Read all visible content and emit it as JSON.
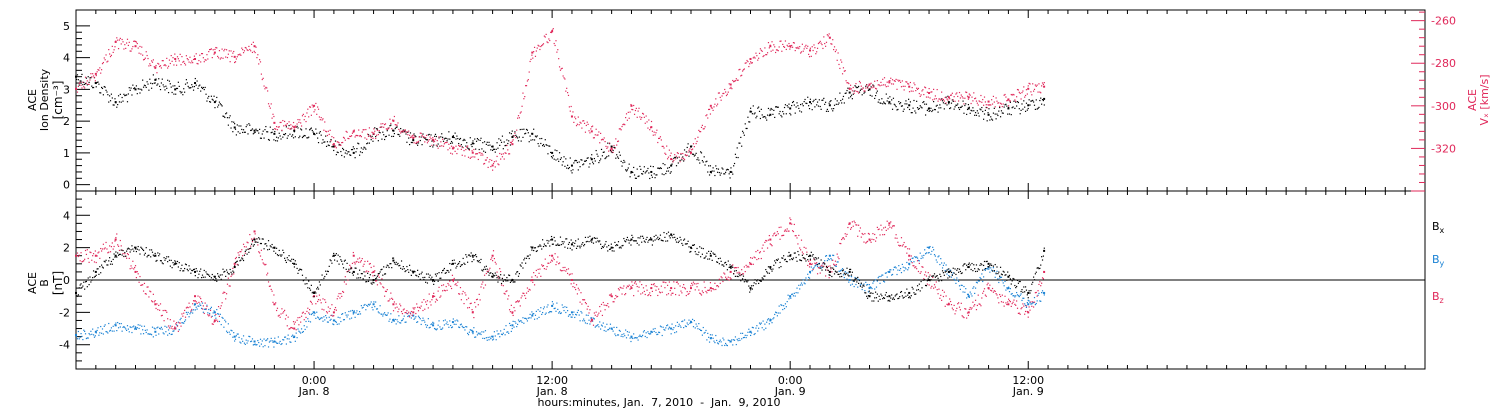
{
  "chart_data": {
    "type": "scatter",
    "x_axis": {
      "range_hours": [
        0,
        68
      ],
      "xlabel": "hours:minutes, Jan.  7, 2010  -  Jan.  9, 2010",
      "ticks": [
        {
          "hour": 12,
          "time": "0:00",
          "date": "Jan. 8"
        },
        {
          "hour": 24,
          "time": "12:00",
          "date": "Jan. 8"
        },
        {
          "hour": 36,
          "time": "0:00",
          "date": "Jan. 9"
        },
        {
          "hour": 48,
          "time": "12:00",
          "date": "Jan. 9"
        }
      ]
    },
    "panels": [
      {
        "name": "density-velocity",
        "left_axis": {
          "label_line1": "ACE",
          "label_line2": "Ion Density",
          "units": "[cm⁻³]",
          "ylim": [
            -0.2,
            5.5
          ],
          "ticks": [
            "0",
            "1",
            "2",
            "3",
            "4",
            "5"
          ],
          "color": "#000000"
        },
        "right_axis": {
          "label_line1": "ACE",
          "label_line2": "Vₓ [km/s]",
          "ylim": [
            -340,
            -255
          ],
          "ticks": [
            "-260",
            "-280",
            "-300",
            "-320"
          ],
          "color": "#e0285a"
        },
        "series": [
          {
            "id": "density",
            "color": "#000000",
            "axis": "left",
            "x": [
              0,
              1,
              2,
              3,
              4,
              5,
              6,
              7,
              8,
              9,
              10,
              11,
              12,
              13,
              14,
              15,
              16,
              17,
              18,
              19,
              20,
              21,
              22,
              23,
              24,
              25,
              26,
              27,
              28,
              29,
              30,
              31,
              32,
              33,
              34,
              35,
              36,
              37,
              38,
              39,
              40,
              41,
              42,
              43,
              44,
              45,
              46,
              47,
              48,
              48.8
            ],
            "y": [
              3.4,
              3.2,
              2.6,
              3.0,
              3.3,
              3.0,
              3.2,
              2.6,
              1.8,
              1.7,
              1.6,
              1.7,
              1.6,
              1.2,
              1.0,
              1.6,
              1.7,
              1.4,
              1.4,
              1.5,
              1.3,
              1.2,
              1.5,
              1.6,
              1.0,
              0.6,
              0.8,
              1.2,
              0.4,
              0.4,
              0.6,
              1.2,
              0.4,
              0.4,
              2.3,
              2.2,
              2.4,
              2.6,
              2.5,
              2.9,
              3.0,
              2.6,
              2.5,
              2.4,
              2.6,
              2.4,
              2.2,
              2.4,
              2.5,
              2.7
            ]
          },
          {
            "id": "vx",
            "color": "#e0285a",
            "axis": "right",
            "x": [
              0,
              1,
              2,
              3,
              4,
              5,
              6,
              7,
              8,
              9,
              10,
              11,
              12,
              13,
              14,
              15,
              16,
              17,
              18,
              19,
              20,
              21,
              22,
              23,
              24,
              25,
              26,
              27,
              28,
              29,
              30,
              31,
              32,
              33,
              34,
              35,
              36,
              37,
              38,
              39,
              40,
              41,
              42,
              43,
              44,
              45,
              46,
              47,
              48,
              48.8
            ],
            "y": [
              -292,
              -285,
              -270,
              -272,
              -282,
              -278,
              -278,
              -275,
              -277,
              -272,
              -308,
              -310,
              -300,
              -318,
              -312,
              -313,
              -307,
              -315,
              -316,
              -320,
              -322,
              -328,
              -318,
              -275,
              -265,
              -305,
              -312,
              -320,
              -300,
              -310,
              -325,
              -322,
              -300,
              -290,
              -278,
              -272,
              -272,
              -274,
              -268,
              -292,
              -290,
              -289,
              -291,
              -294,
              -296,
              -296,
              -298,
              -297,
              -292,
              -291
            ]
          }
        ]
      },
      {
        "name": "magnetic-field",
        "left_axis": {
          "label_line1": "ACE",
          "label_line2": "B",
          "units": "[nT]",
          "ylim": [
            -5.5,
            5.5
          ],
          "ticks": [
            "4",
            "2",
            "0",
            "-2",
            "-4"
          ]
        },
        "zero_line": true,
        "legend": [
          {
            "label": "B",
            "sub": "x",
            "color": "#000000"
          },
          {
            "label": "B",
            "sub": "y",
            "color": "#1a82d4"
          },
          {
            "label": "B",
            "sub": "z",
            "color": "#e0285a"
          }
        ],
        "series": [
          {
            "id": "bx",
            "color": "#000000",
            "x": [
              0,
              1,
              2,
              3,
              4,
              5,
              6,
              7,
              8,
              9,
              10,
              11,
              12,
              13,
              14,
              15,
              16,
              17,
              18,
              19,
              20,
              21,
              22,
              23,
              24,
              25,
              26,
              27,
              28,
              29,
              30,
              31,
              32,
              33,
              34,
              35,
              36,
              37,
              38,
              39,
              40,
              41,
              42,
              43,
              44,
              45,
              46,
              47,
              48,
              48.8
            ],
            "y": [
              -0.8,
              0.5,
              1.5,
              2.0,
              1.5,
              1.0,
              0.5,
              0.2,
              0.8,
              2.5,
              2.0,
              1.0,
              -0.8,
              1.5,
              0.5,
              0.0,
              1.2,
              0.5,
              0.0,
              1.0,
              1.5,
              0.2,
              0.0,
              2.0,
              2.5,
              2.2,
              2.5,
              2.0,
              2.5,
              2.5,
              2.8,
              2.0,
              1.5,
              0.8,
              -0.5,
              0.8,
              1.5,
              1.5,
              0.5,
              0.5,
              -1.0,
              -1.0,
              -0.8,
              0.0,
              0.5,
              0.8,
              1.0,
              0.2,
              -0.8,
              1.8
            ]
          },
          {
            "id": "by",
            "color": "#1a82d4",
            "x": [
              0,
              1,
              2,
              3,
              4,
              5,
              6,
              7,
              8,
              9,
              10,
              11,
              12,
              13,
              14,
              15,
              16,
              17,
              18,
              19,
              20,
              21,
              22,
              23,
              24,
              25,
              26,
              27,
              28,
              29,
              30,
              31,
              32,
              33,
              34,
              35,
              36,
              37,
              38,
              39,
              40,
              41,
              42,
              43,
              44,
              45,
              46,
              47,
              48,
              48.8
            ],
            "y": [
              -3.4,
              -3.2,
              -2.8,
              -3.0,
              -3.2,
              -3.0,
              -1.5,
              -2.0,
              -3.5,
              -3.8,
              -3.8,
              -3.5,
              -2.0,
              -2.5,
              -2.0,
              -1.5,
              -2.5,
              -2.2,
              -2.8,
              -2.6,
              -3.2,
              -3.5,
              -2.8,
              -2.2,
              -1.6,
              -2.0,
              -2.5,
              -3.0,
              -3.5,
              -3.2,
              -3.0,
              -2.6,
              -3.6,
              -3.8,
              -3.2,
              -2.5,
              -1.0,
              0.5,
              1.5,
              0.0,
              -0.5,
              0.5,
              1.0,
              2.0,
              0.5,
              -1.0,
              0.8,
              -0.5,
              -1.5,
              -0.8
            ]
          },
          {
            "id": "bz",
            "color": "#e0285a",
            "x": [
              0,
              1,
              2,
              3,
              4,
              5,
              6,
              7,
              8,
              9,
              10,
              11,
              12,
              13,
              14,
              15,
              16,
              17,
              18,
              19,
              20,
              21,
              22,
              23,
              24,
              25,
              26,
              27,
              28,
              29,
              30,
              31,
              32,
              33,
              34,
              35,
              36,
              37,
              38,
              39,
              40,
              41,
              42,
              43,
              44,
              45,
              46,
              47,
              48,
              48.8
            ],
            "y": [
              1.5,
              1.5,
              2.5,
              0.5,
              -1.5,
              -3.0,
              -1.0,
              -2.5,
              1.0,
              3.0,
              -1.5,
              -3.0,
              -1.0,
              -2.0,
              1.5,
              0.5,
              -1.5,
              -2.0,
              -1.0,
              0.0,
              -2.0,
              1.5,
              -2.0,
              0.0,
              1.5,
              0.0,
              -2.5,
              -1.0,
              -0.5,
              -0.5,
              -0.5,
              -0.5,
              -0.5,
              0.5,
              1.0,
              2.5,
              3.5,
              1.0,
              0.5,
              3.5,
              2.5,
              3.5,
              1.5,
              0.0,
              -1.5,
              -2.0,
              -0.5,
              -1.5,
              -2.0,
              0.5
            ]
          }
        ]
      }
    ]
  }
}
